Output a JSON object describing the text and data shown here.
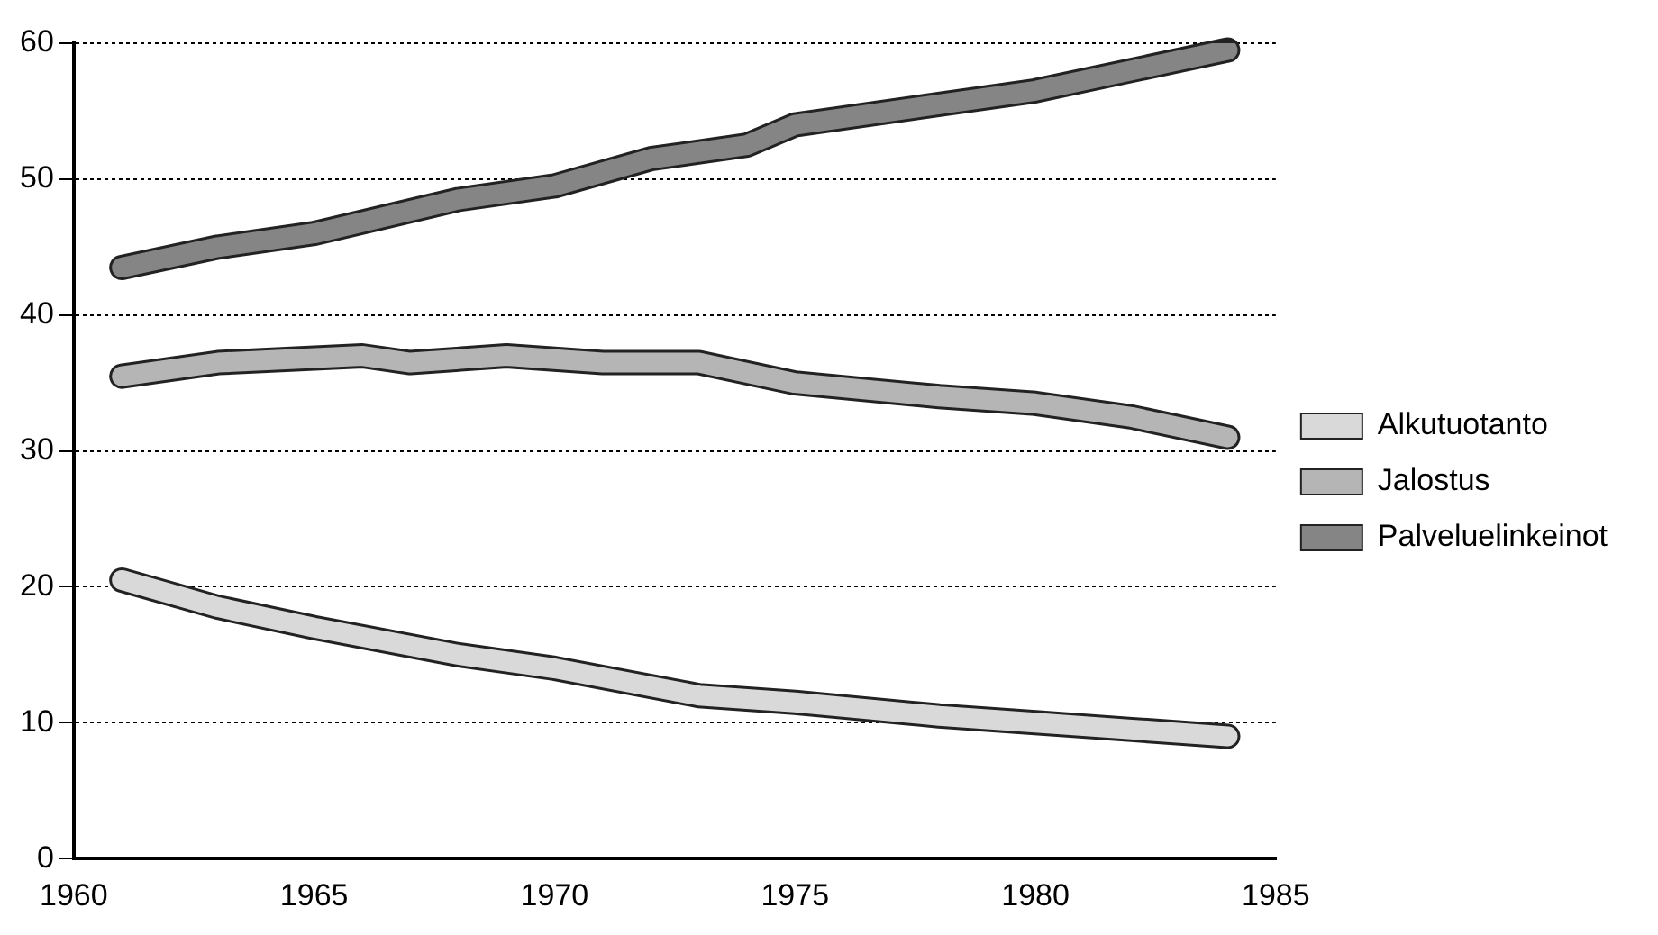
{
  "chart_data": {
    "type": "line",
    "xlim": [
      1960,
      1985
    ],
    "xticks": [
      1960,
      1965,
      1970,
      1975,
      1980,
      1985
    ],
    "ylim": [
      0,
      60
    ],
    "yticks": [
      0,
      10,
      20,
      30,
      40,
      50,
      60
    ],
    "grid": "y",
    "legend": "right",
    "marker": "none",
    "line_style": "solid",
    "series": [
      {
        "name": "Alkutuotanto",
        "color": "#d9d9d9",
        "x": [
          1961,
          1963,
          1965,
          1968,
          1970,
          1973,
          1975,
          1978,
          1980,
          1982,
          1984
        ],
        "values": [
          20.5,
          18.5,
          17,
          15,
          14,
          12,
          11.5,
          10.5,
          10,
          9.5,
          9
        ]
      },
      {
        "name": "Jalostus",
        "color": "#b5b5b5",
        "x": [
          1961,
          1963,
          1966,
          1967,
          1969,
          1971,
          1973,
          1975,
          1978,
          1980,
          1982,
          1984
        ],
        "values": [
          35.5,
          36.5,
          37,
          36.5,
          37,
          36.5,
          36.5,
          35,
          34,
          33.5,
          32.5,
          31
        ]
      },
      {
        "name": "Palveluelinkeinot",
        "color": "#858585",
        "x": [
          1961,
          1963,
          1965,
          1968,
          1970,
          1972,
          1974,
          1975,
          1978,
          1980,
          1982,
          1984
        ],
        "values": [
          43.5,
          45,
          46,
          48.5,
          49.5,
          51.5,
          52.5,
          54,
          55.5,
          56.5,
          58,
          59.5
        ]
      }
    ]
  }
}
